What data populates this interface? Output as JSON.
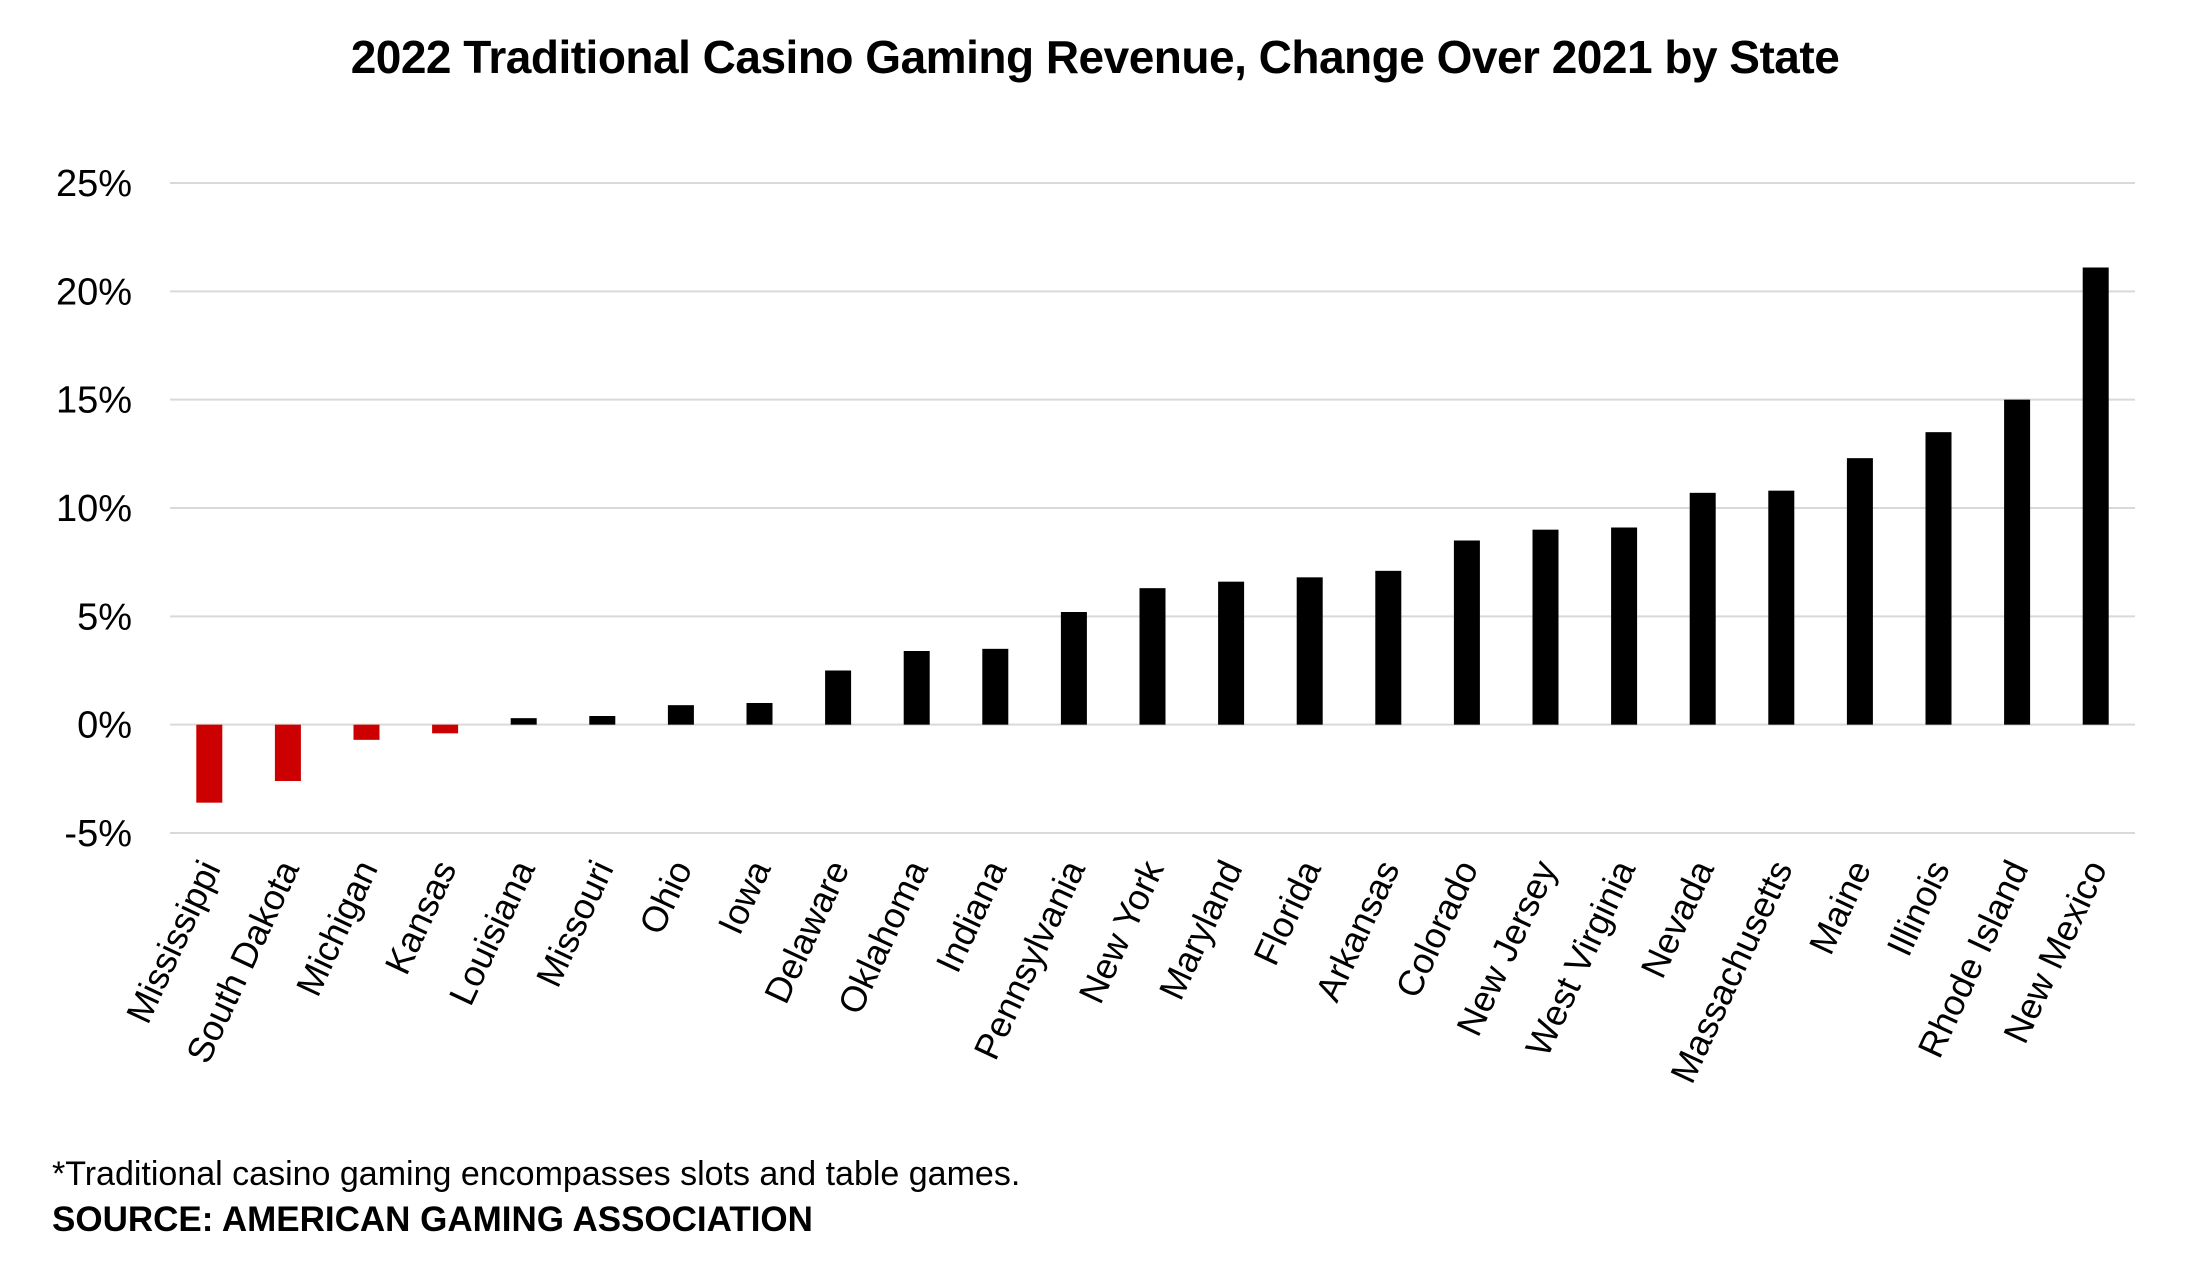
{
  "chart_data": {
    "type": "bar",
    "title": "2022 Traditional Casino Gaming Revenue, Change Over 2021 by State",
    "xlabel": "",
    "ylabel": "",
    "ylim": [
      -5,
      25
    ],
    "yticks": [
      -5,
      0,
      5,
      10,
      15,
      20,
      25
    ],
    "ytick_labels": [
      "-5%",
      "0%",
      "5%",
      "10%",
      "15%",
      "20%",
      "25%"
    ],
    "grid": true,
    "categories": [
      "Mississippi",
      "South Dakota",
      "Michigan",
      "Kansas",
      "Louisiana",
      "Missouri",
      "Ohio",
      "Iowa",
      "Delaware",
      "Oklahoma",
      "Indiana",
      "Pennsylvania",
      "New York",
      "Maryland",
      "Florida",
      "Arkansas",
      "Colorado",
      "New Jersey",
      "West Virginia",
      "Nevada",
      "Massachusetts",
      "Maine",
      "Illinois",
      "Rhode Island",
      "New Mexico"
    ],
    "values": [
      -3.6,
      -2.6,
      -0.7,
      -0.4,
      0.3,
      0.4,
      0.9,
      1.0,
      2.5,
      3.4,
      3.5,
      5.2,
      6.3,
      6.6,
      6.8,
      7.1,
      8.5,
      9.0,
      9.1,
      10.7,
      10.8,
      12.3,
      13.5,
      15.0,
      21.1
    ],
    "colors": {
      "positive": "#000000",
      "negative": "#cc0000",
      "grid": "#d9d9d9"
    }
  },
  "footnote": "*Traditional casino gaming encompasses slots and table games.",
  "source": "SOURCE: AMERICAN GAMING ASSOCIATION"
}
